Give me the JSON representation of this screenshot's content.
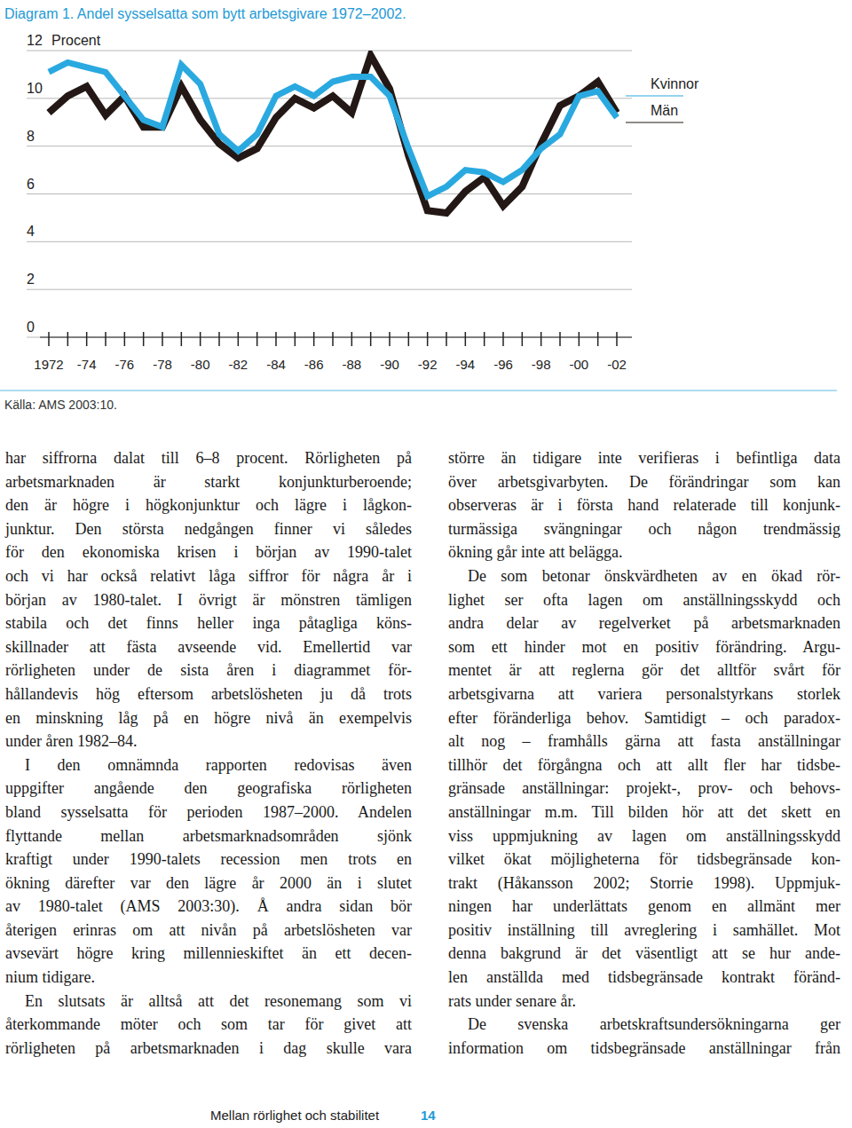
{
  "chart_data": {
    "type": "line",
    "title": "Diagram 1. Andel sysselsatta som bytt arbetsgivare 1972–2002.",
    "y_label": "Procent",
    "categories": [
      "1972",
      null,
      "-74",
      null,
      "-76",
      null,
      "-78",
      null,
      "-80",
      null,
      "-82",
      null,
      "-84",
      null,
      "-86",
      null,
      "-88",
      null,
      "-90",
      null,
      "-92",
      null,
      "-94",
      null,
      "-96",
      null,
      "-98",
      null,
      "-00",
      null,
      "-02"
    ],
    "series": [
      {
        "name": "Kvinnor",
        "color": "#2aa9e0",
        "values": [
          11.1,
          11.5,
          11.3,
          11.1,
          10.1,
          9.1,
          8.8,
          11.4,
          10.6,
          8.5,
          7.8,
          8.5,
          10.1,
          10.5,
          10.1,
          10.7,
          10.9,
          10.9,
          10.1,
          7.9,
          5.9,
          6.3,
          7.0,
          6.9,
          6.5,
          7.0,
          7.9,
          8.5,
          10.1,
          10.3,
          9.2
        ]
      },
      {
        "name": "Män",
        "color": "#231815",
        "values": [
          9.4,
          10.1,
          10.5,
          9.3,
          10.1,
          8.8,
          8.8,
          10.5,
          9.1,
          8.1,
          7.5,
          7.9,
          9.2,
          10.0,
          9.6,
          10.1,
          9.4,
          11.8,
          10.4,
          7.6,
          5.3,
          5.2,
          6.1,
          6.7,
          5.5,
          6.3,
          8.1,
          9.7,
          10.1,
          10.7,
          9.4
        ]
      }
    ],
    "ylim": [
      0,
      12
    ],
    "yticks": [
      0,
      2,
      4,
      6,
      8,
      10,
      12
    ],
    "grid": true,
    "legend": "right"
  },
  "source": "Källa: AMS 2003:10.",
  "left_column": [
    [
      "har siffrorna dalat till 6–8 procent. Rörligheten på",
      "arbetsmarknaden är starkt konjunkturberoende;",
      "den är högre i högkonjunktur och lägre i lågkon-",
      "junktur. Den största nedgången finner vi således",
      "för den ekonomiska krisen i början av 1990-talet",
      "och vi har också relativt låga siffror för några år i",
      "början av 1980-talet. I övrigt är mönstren tämligen",
      "stabila och det finns heller inga påtagliga köns-",
      "skillnader att fästa avseende vid. Emellertid var",
      "rörligheten under de sista åren i diagrammet för-",
      "hållandevis hög eftersom arbetslösheten ju då trots",
      "en minskning låg på en högre nivå än exempelvis",
      "under åren 1982–84."
    ],
    [
      "I den omnämnda rapporten redovisas även",
      "uppgifter angående den geografiska rörligheten",
      "bland sysselsatta för perioden 1987–2000. Andelen",
      "flyttande mellan arbetsmarknadsområden sjönk",
      "kraftigt under 1990-talets recession men trots en",
      "ökning därefter var den lägre år 2000 än i slutet",
      "av 1980-talet (AMS 2003:30). Å andra sidan bör",
      "återigen erinras om att nivån på arbetslösheten var",
      "avsevärt högre kring millennieskiftet än ett decen-",
      "nium tidigare."
    ],
    [
      "En slutsats är alltså att det resonemang som vi",
      "återkommande möter och som tar för givet att",
      "rörligheten på arbetsmarknaden i dag skulle vara"
    ]
  ],
  "right_column": [
    [
      "större än tidigare inte verifieras i befintliga data",
      "över arbetsgivarbyten. De förändringar som kan",
      "observeras är i första hand relaterade till konjunk-",
      "turmässiga svängningar och någon trendmässig",
      "ökning går inte att belägga."
    ],
    [
      "De som betonar önskvärdheten av en ökad rör-",
      "lighet ser ofta lagen om anställningsskydd och",
      "andra delar av regelverket på arbetsmarknaden",
      "som ett hinder mot en positiv förändring. Argu-",
      "mentet är att reglerna gör det alltför svårt för",
      "arbetsgivarna att variera personalstyrkans storlek",
      "efter föränderliga behov. Samtidigt – och paradox-",
      "alt nog – framhålls gärna att fasta anställningar",
      "tillhör det förgångna och att allt fler har tidsbe-",
      "gränsade anställningar: projekt-, prov- och behovs-",
      "anställningar m.m. Till bilden hör att det skett en",
      "viss uppmjukning av lagen om anställningsskydd",
      "vilket ökat möjligheterna för tidsbegränsade kon-",
      "trakt (Håkansson 2002; Storrie 1998). Uppmjuk-",
      "ningen har underlättats genom en allmänt mer",
      "positiv inställning till avreglering i samhället. Mot",
      "denna bakgrund är det väsentligt att se hur ande-",
      "len anställda med tidsbegränsade kontrakt föränd-",
      "rats under senare år."
    ],
    [
      "De svenska arbetskraftsundersökningarna ger",
      "information om tidsbegränsade anställningar från"
    ]
  ],
  "footer": {
    "title": "Mellan rörlighet och stabilitet",
    "page_number": "14"
  }
}
